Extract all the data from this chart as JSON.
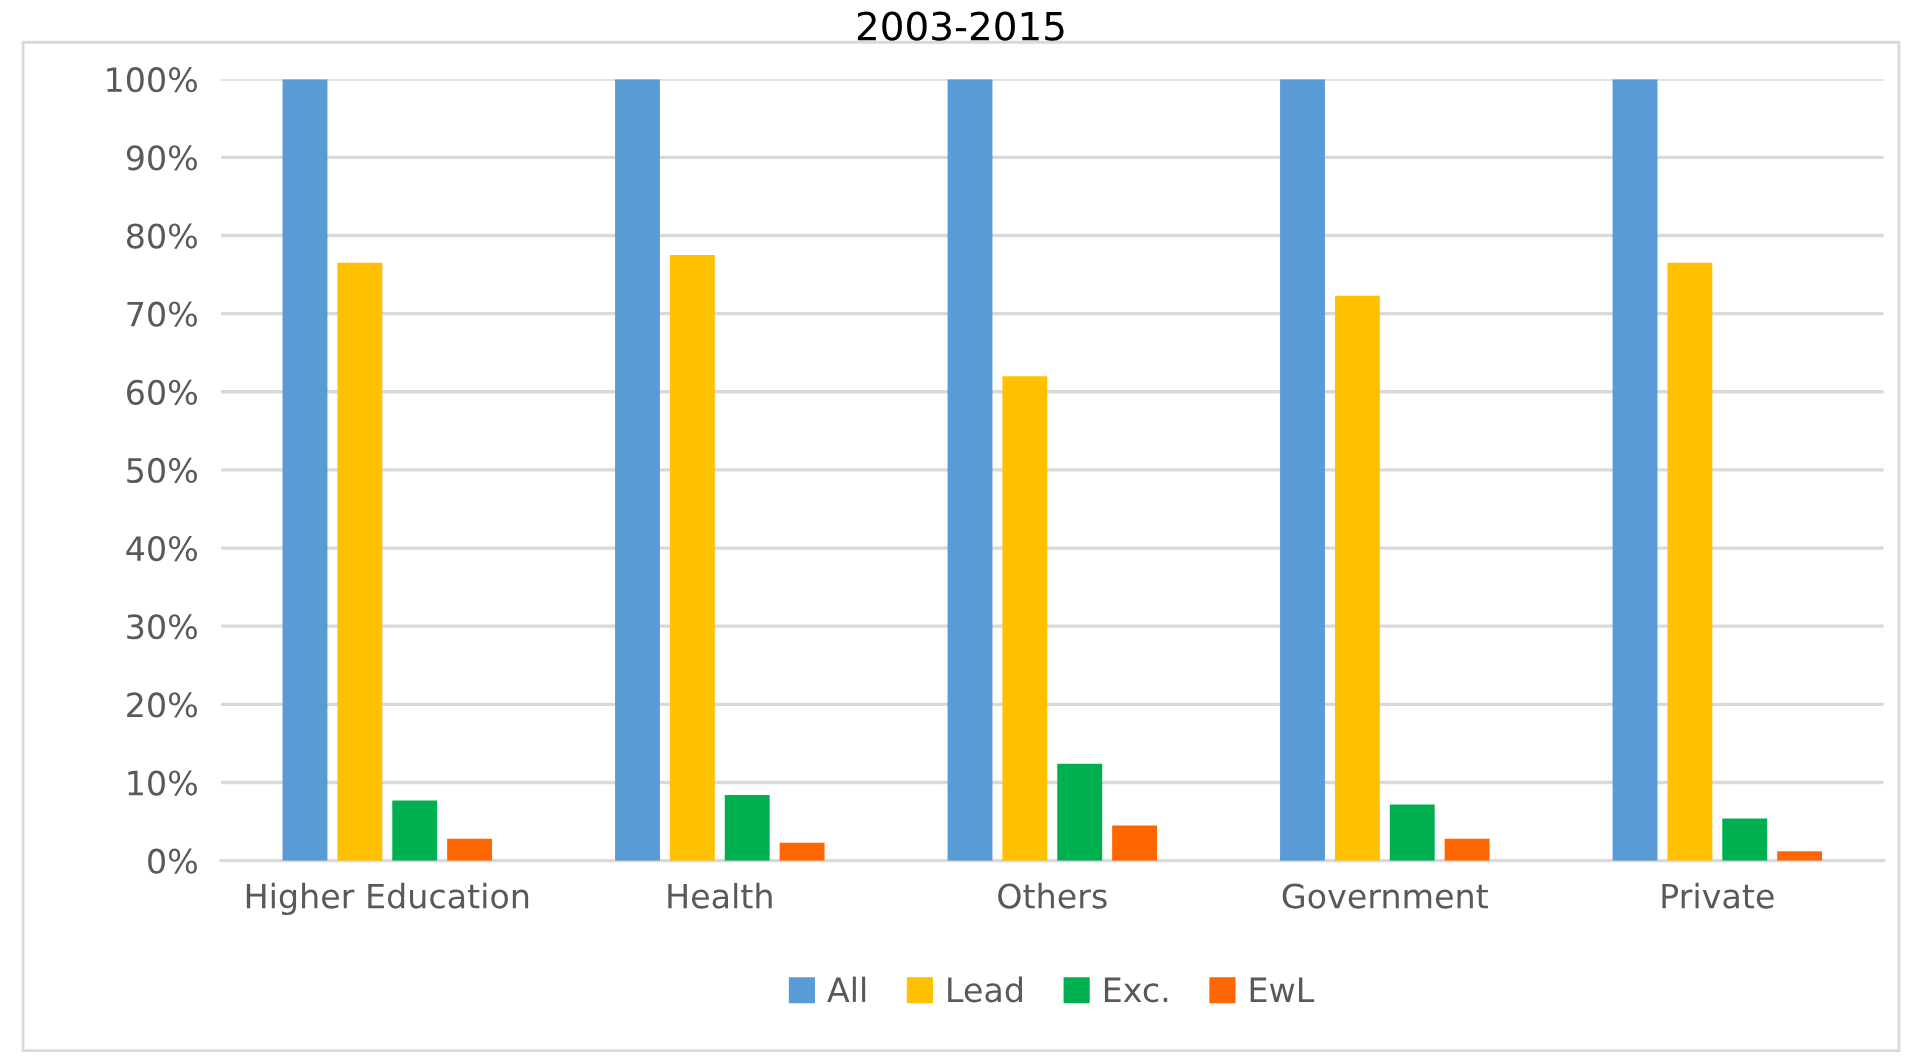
{
  "chart_data": {
    "type": "bar",
    "title": "2003-2015",
    "categories": [
      "Higher Education",
      "Health",
      "Others",
      "Government",
      "Private"
    ],
    "series": [
      {
        "name": "All",
        "color": "#5b9bd5",
        "values": [
          100,
          100,
          100,
          100,
          100
        ]
      },
      {
        "name": "Lead",
        "color": "#ffc000",
        "values": [
          76.5,
          77.5,
          62,
          72.3,
          76.5
        ]
      },
      {
        "name": "Exc.",
        "color": "#00b050",
        "values": [
          7.7,
          8.4,
          12.4,
          7.2,
          5.4
        ]
      },
      {
        "name": "EwL",
        "color": "#ff6600",
        "values": [
          2.8,
          2.3,
          4.5,
          2.8,
          1.2
        ]
      }
    ],
    "ylim": [
      0,
      100
    ],
    "yticks": [
      {
        "value": 0,
        "label": "0%"
      },
      {
        "value": 10,
        "label": "10%"
      },
      {
        "value": 20,
        "label": "20%"
      },
      {
        "value": 30,
        "label": "30%"
      },
      {
        "value": 40,
        "label": "40%"
      },
      {
        "value": 50,
        "label": "50%"
      },
      {
        "value": 60,
        "label": "60%"
      },
      {
        "value": 70,
        "label": "70%"
      },
      {
        "value": 80,
        "label": "80%"
      },
      {
        "value": 90,
        "label": "90%"
      },
      {
        "value": 100,
        "label": "100%"
      }
    ],
    "grid": "y",
    "legend": "bottom"
  }
}
